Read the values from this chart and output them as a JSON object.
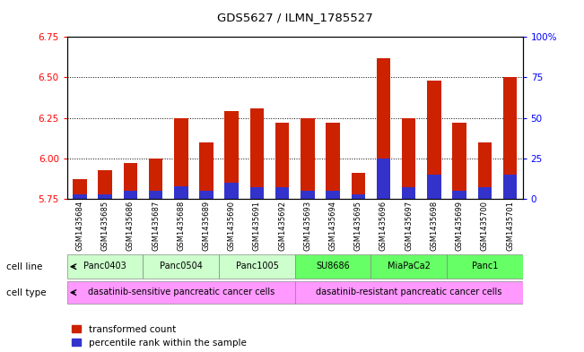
{
  "title": "GDS5627 / ILMN_1785527",
  "samples": [
    "GSM1435684",
    "GSM1435685",
    "GSM1435686",
    "GSM1435687",
    "GSM1435688",
    "GSM1435689",
    "GSM1435690",
    "GSM1435691",
    "GSM1435692",
    "GSM1435693",
    "GSM1435694",
    "GSM1435695",
    "GSM1435696",
    "GSM1435697",
    "GSM1435698",
    "GSM1435699",
    "GSM1435700",
    "GSM1435701"
  ],
  "transformed_counts": [
    5.87,
    5.93,
    5.97,
    6.0,
    6.25,
    6.1,
    6.29,
    6.31,
    6.22,
    6.25,
    6.22,
    5.91,
    6.62,
    6.25,
    6.48,
    6.22,
    6.1,
    6.5
  ],
  "percentile_ranks": [
    3,
    3,
    5,
    5,
    8,
    5,
    10,
    7,
    7,
    5,
    5,
    3,
    25,
    7,
    15,
    5,
    7,
    15
  ],
  "cell_lines": [
    {
      "name": "Panc0403",
      "start": 0,
      "end": 2,
      "color": "#ccffcc"
    },
    {
      "name": "Panc0504",
      "start": 3,
      "end": 5,
      "color": "#ccffcc"
    },
    {
      "name": "Panc1005",
      "start": 6,
      "end": 8,
      "color": "#ccffcc"
    },
    {
      "name": "SU8686",
      "start": 9,
      "end": 11,
      "color": "#66ff66"
    },
    {
      "name": "MiaPaCa2",
      "start": 12,
      "end": 14,
      "color": "#66ff66"
    },
    {
      "name": "Panc1",
      "start": 15,
      "end": 17,
      "color": "#66ff66"
    }
  ],
  "cell_types": [
    {
      "name": "dasatinib-sensitive pancreatic cancer cells",
      "start": 0,
      "end": 8,
      "color": "#ff99ff"
    },
    {
      "name": "dasatinib-resistant pancreatic cancer cells",
      "start": 9,
      "end": 17,
      "color": "#ff99ff"
    }
  ],
  "ylim_left": [
    5.75,
    6.75
  ],
  "ylim_right": [
    0,
    100
  ],
  "yticks_left": [
    5.75,
    6.0,
    6.25,
    6.5,
    6.75
  ],
  "yticks_right": [
    0,
    25,
    50,
    75,
    100
  ],
  "ytick_labels_right": [
    "0",
    "25",
    "50",
    "75",
    "100%"
  ],
  "bar_color_red": "#cc2200",
  "bar_color_blue": "#3333cc",
  "bar_width": 0.55,
  "base_value": 5.75,
  "bg_color": "#ffffff",
  "xtick_bg": "#cccccc",
  "cell_line_label_color": "#000000",
  "grid_yticks": [
    6.0,
    6.25,
    6.5
  ]
}
